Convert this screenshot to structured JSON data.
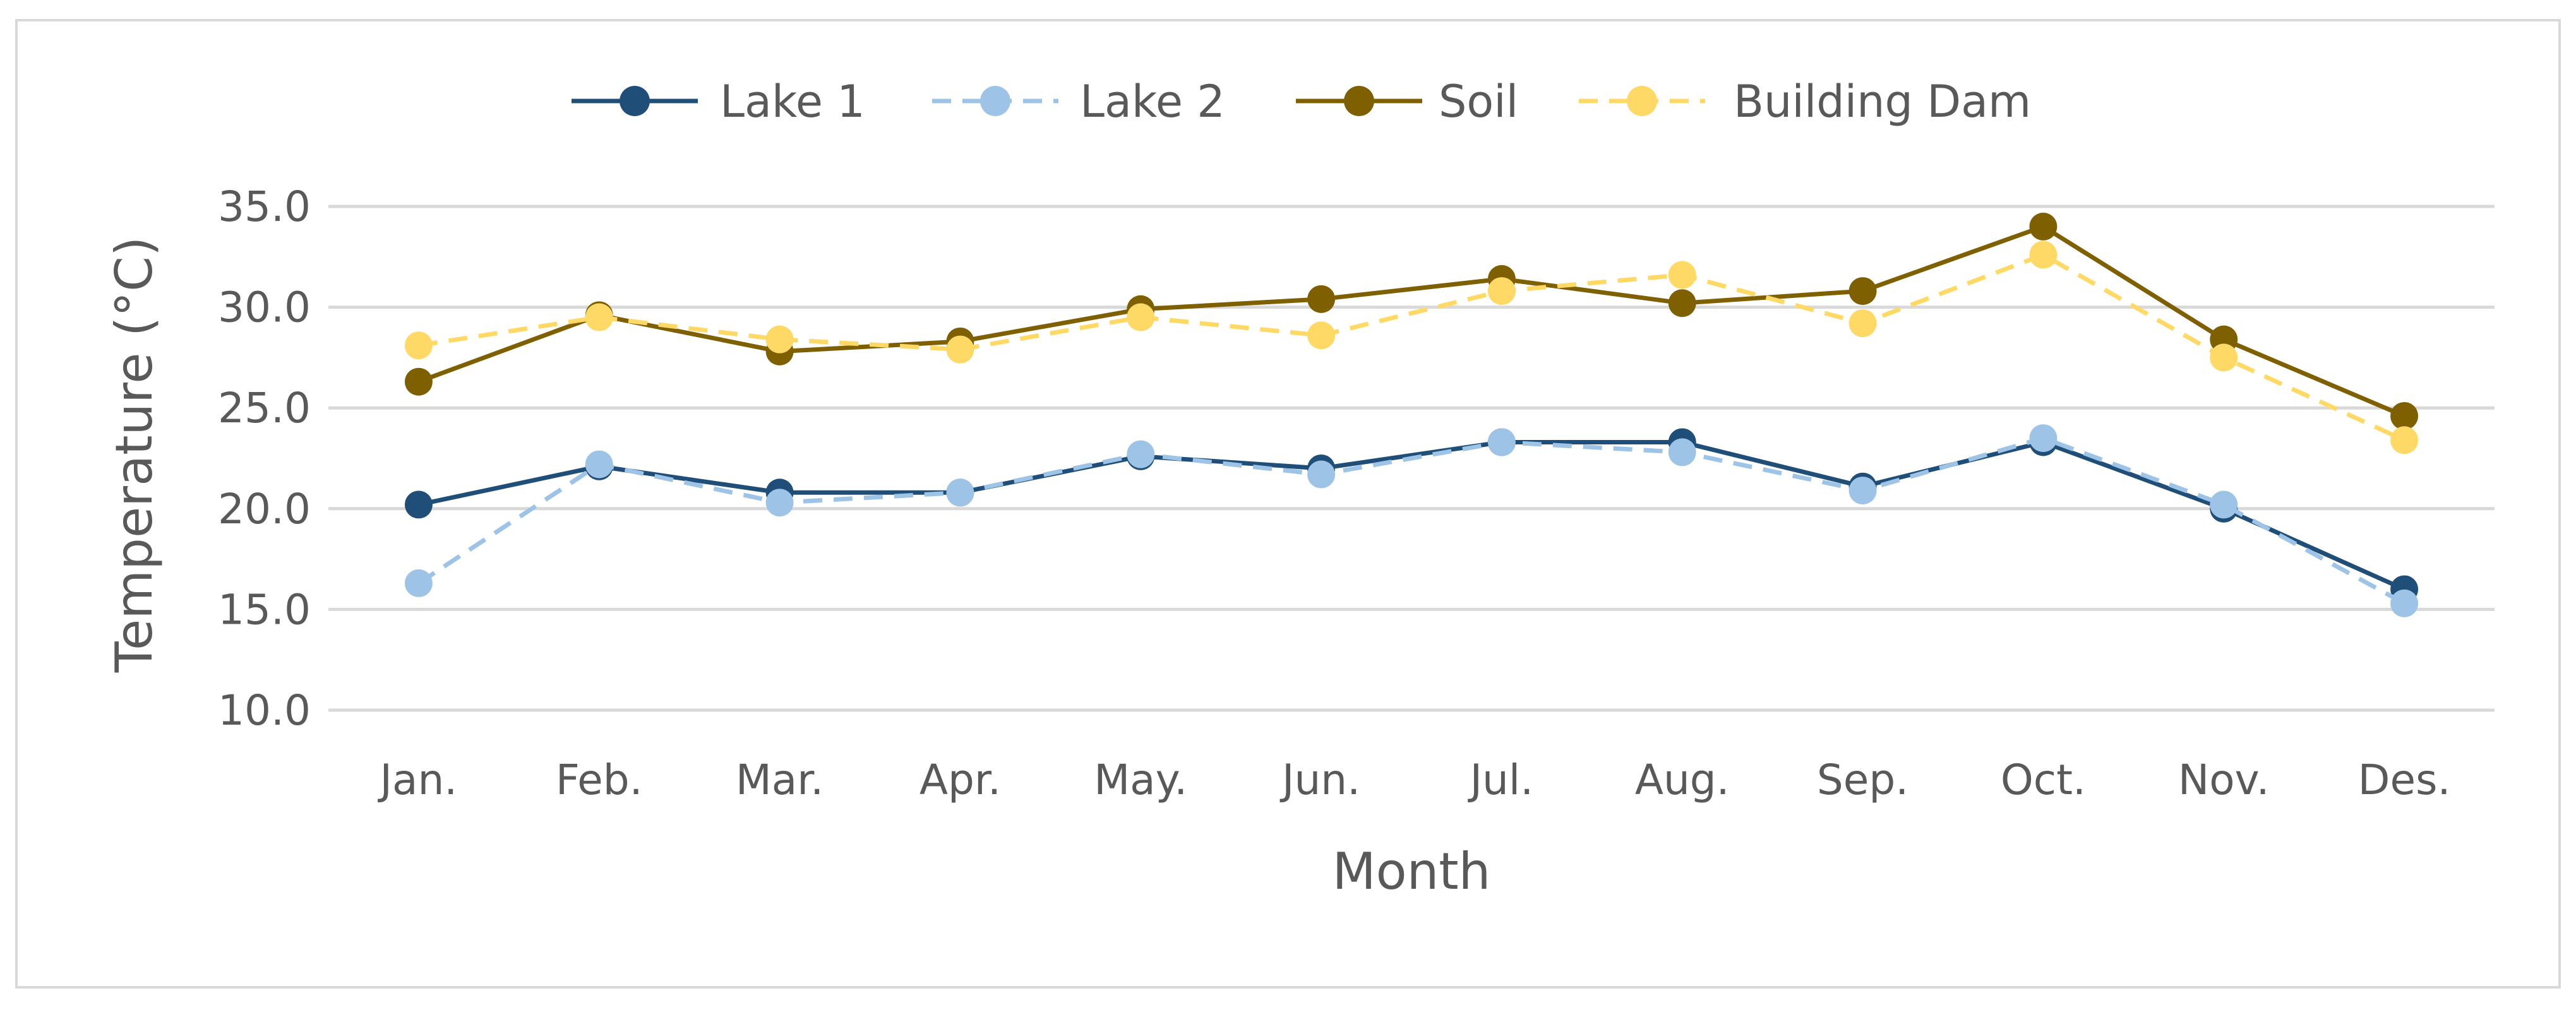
{
  "chart_data": {
    "type": "line",
    "title": "",
    "xlabel": "Month",
    "ylabel": "Temperature (°C)",
    "ylim": [
      10,
      35
    ],
    "yticks": [
      10.0,
      15.0,
      20.0,
      25.0,
      30.0,
      35.0
    ],
    "ytick_labels": [
      "10.0",
      "15.0",
      "20.0",
      "25.0",
      "30.0",
      "35.0"
    ],
    "grid": "horizontal",
    "legend_position": "top-center",
    "categories": [
      "Jan.",
      "Feb.",
      "Mar.",
      "Apr.",
      "May.",
      "Jun.",
      "Jul.",
      "Aug.",
      "Sep.",
      "Oct.",
      "Nov.",
      "Des."
    ],
    "series": [
      {
        "name": "Lake 1",
        "color": "#1f4e79",
        "dashed": false,
        "values": [
          20.2,
          22.1,
          20.8,
          20.8,
          22.6,
          22.0,
          23.3,
          23.3,
          21.1,
          23.3,
          20.0,
          16.0
        ]
      },
      {
        "name": "Lake 2",
        "color": "#9dc3e6",
        "dashed": true,
        "values": [
          16.3,
          22.2,
          20.3,
          20.8,
          22.7,
          21.7,
          23.3,
          22.8,
          20.9,
          23.5,
          20.2,
          15.3
        ]
      },
      {
        "name": "Soil",
        "color": "#7f6000",
        "dashed": false,
        "values": [
          26.3,
          29.6,
          27.8,
          28.3,
          29.9,
          30.4,
          31.4,
          30.2,
          30.8,
          34.0,
          28.4,
          24.6
        ]
      },
      {
        "name": "Building Dam",
        "color": "#ffd966",
        "dashed": true,
        "values": [
          28.1,
          29.5,
          28.4,
          27.9,
          29.5,
          28.6,
          30.8,
          31.6,
          29.2,
          32.6,
          27.5,
          23.4
        ]
      }
    ]
  }
}
